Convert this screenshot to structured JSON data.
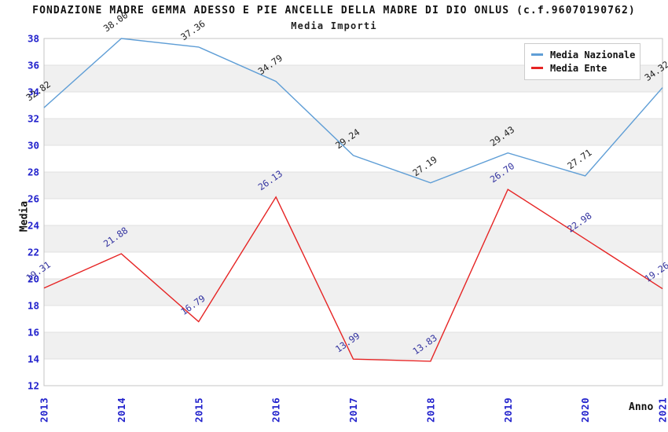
{
  "chart": {
    "title": "FONDAZIONE MADRE GEMMA ADESSO E PIE ANCELLE DELLA MADRE DI DIO ONLUS (c.f.96070190762)",
    "subtitle": "Media Importi",
    "xlabel": "Anno",
    "ylabel": "Media"
  },
  "legend": {
    "items": [
      {
        "label": "Media Nazionale",
        "color": "#5f9ed6"
      },
      {
        "label": "Media Ente",
        "color": "#e62424"
      }
    ]
  },
  "chart_data": {
    "type": "line",
    "title": "FONDAZIONE MADRE GEMMA ADESSO E PIE ANCELLE DELLA MADRE DI DIO ONLUS (c.f.96070190762)",
    "subtitle": "Media Importi",
    "xlabel": "Anno",
    "ylabel": "Media",
    "categories": [
      "2013",
      "2014",
      "2015",
      "2016",
      "2017",
      "2018",
      "2019",
      "2020",
      "2021"
    ],
    "series": [
      {
        "name": "Media Nazionale",
        "color": "#5f9ed6",
        "label_color": "#222222",
        "values": [
          32.82,
          38.0,
          37.36,
          34.79,
          29.24,
          27.19,
          29.43,
          27.71,
          34.32
        ]
      },
      {
        "name": "Media Ente",
        "color": "#e62424",
        "label_color": "#3333a0",
        "values": [
          19.31,
          21.88,
          16.79,
          26.13,
          13.99,
          13.83,
          26.7,
          22.98,
          19.26
        ]
      }
    ],
    "ylim": [
      12,
      38
    ],
    "ytick_step": 2,
    "grid": true,
    "banded_background": true,
    "legend_position": "top-right",
    "colors": {
      "tick_label": "#2222cc",
      "band": "#f0f0f0",
      "gridline": "#e0e0e0",
      "border": "#c4c4c4"
    }
  }
}
